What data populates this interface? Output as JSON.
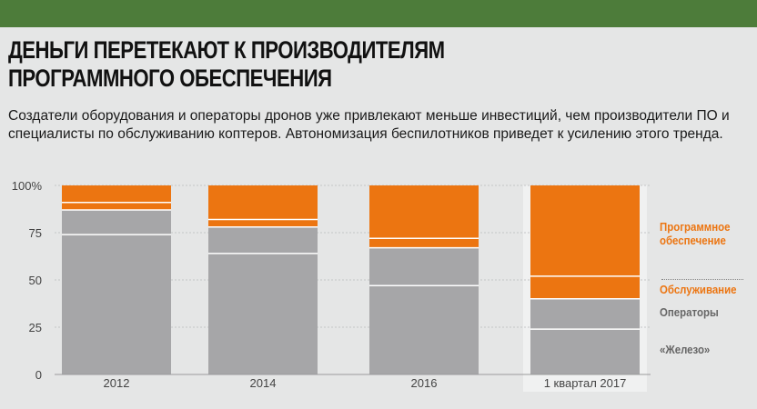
{
  "header": {
    "title": "Деньги перетекают к производителям программного обеспечения",
    "subtitle": "Создатели оборудования и операторы дронов уже привлекают меньше инвестиций, чем производители ПО и специалисты по обслуживанию коптеров. Автономизация беспилотников приведет к усилению этого тренда."
  },
  "colors": {
    "background": "#e5e6e6",
    "header_bar": "#4d7c3a",
    "orange": "#ec7511",
    "gray": "#a6a6a8",
    "legend_muted": "#666666"
  },
  "chart_data": {
    "type": "bar",
    "stacked": true,
    "categories": [
      "2012",
      "2014",
      "2016",
      "1 квартал 2017"
    ],
    "y_tick_labels": [
      "0",
      "25",
      "50",
      "75",
      "100%"
    ],
    "ylim": [
      0,
      100
    ],
    "series": [
      {
        "name": "«Железо»",
        "values": [
          74,
          64,
          47,
          24
        ]
      },
      {
        "name": "Операторы",
        "values": [
          13,
          14,
          20,
          16
        ]
      },
      {
        "name": "Обслуживание",
        "values": [
          4,
          4,
          5,
          12
        ]
      },
      {
        "name": "Программное обеспечение",
        "values": [
          9,
          18,
          28,
          48
        ]
      }
    ],
    "legend_position": "right",
    "highlighted_category": "1 квартал 2017"
  }
}
